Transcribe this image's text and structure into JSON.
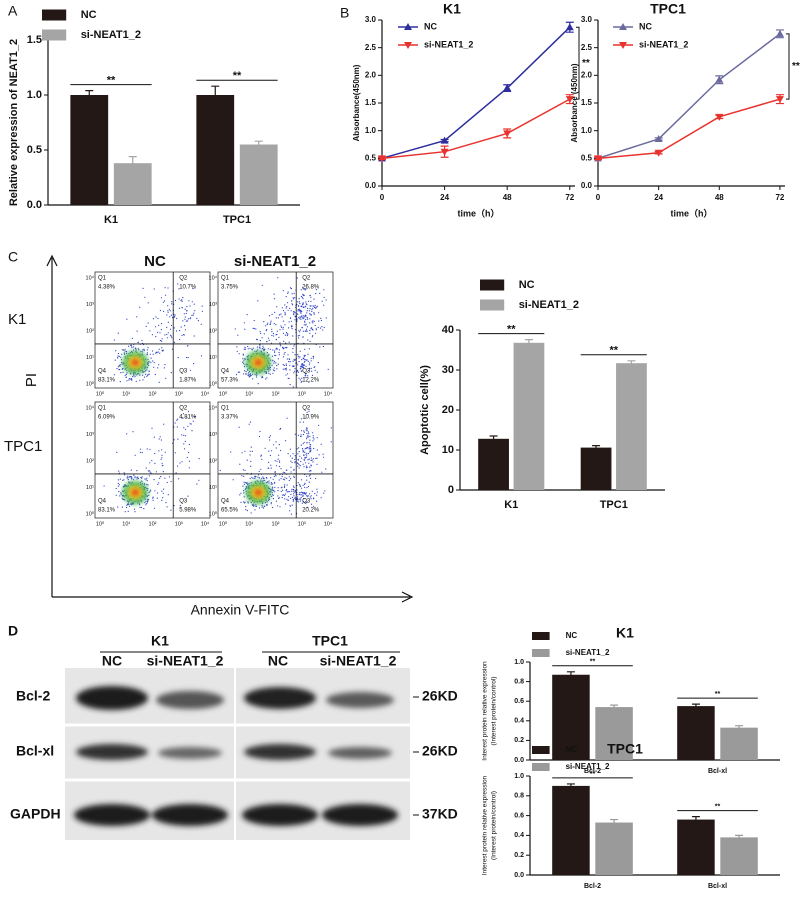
{
  "panels": [
    "A",
    "B",
    "C",
    "D"
  ],
  "chart_data": [
    {
      "type": "bar",
      "y_label": "Relative expression of NEAT1_2",
      "categories": [
        "K1",
        "TPC1"
      ],
      "series": [
        {
          "name": "NC",
          "color": "#231815",
          "values": [
            1.0,
            1.0
          ],
          "errors": [
            0.04,
            0.08
          ]
        },
        {
          "name": "si-NEAT1_2",
          "color": "#a5a5a5",
          "values": [
            0.38,
            0.55
          ],
          "errors": [
            0.06,
            0.03
          ]
        }
      ],
      "ylim": [
        0,
        1.5
      ],
      "yticks": [
        {
          "value": 0,
          "label": "0.0"
        },
        0.5,
        {
          "value": 1,
          "label": "1.0"
        },
        1.5
      ],
      "annotations": [
        "**",
        "**"
      ]
    },
    {
      "type": "line",
      "title": "K1",
      "y_label": "Absorbance(450nm)",
      "x_label": "time（h）",
      "x": [
        0,
        24,
        48,
        72
      ],
      "series": [
        {
          "name": "NC",
          "color": "#2e2e9e",
          "marker": "triangle-up",
          "values": [
            0.5,
            0.82,
            1.77,
            2.87
          ],
          "errors": [
            0.02,
            0.02,
            0.06,
            0.09
          ]
        },
        {
          "name": "si-NEAT1_2",
          "color": "#e8322d",
          "marker": "triangle-down",
          "values": [
            0.5,
            0.62,
            0.95,
            1.57
          ],
          "errors": [
            0.02,
            0.1,
            0.08,
            0.08
          ]
        }
      ],
      "xlim": [
        0,
        74
      ],
      "xticks": [
        0,
        24,
        48,
        72
      ],
      "ylim": [
        0,
        3
      ],
      "yticks": [
        {
          "value": 0,
          "label": "0.0"
        },
        0.5,
        {
          "value": 1,
          "label": "1.0"
        },
        1.5,
        {
          "value": 2,
          "label": "2.0"
        },
        2.5,
        {
          "value": 3,
          "label": "3.0"
        }
      ],
      "annotations": [
        "**"
      ]
    },
    {
      "type": "line",
      "title": "TPC1",
      "y_label": "Absorbance (450nm)",
      "x_label": "time（h）",
      "x": [
        0,
        24,
        48,
        72
      ],
      "series": [
        {
          "name": "NC",
          "color": "#6a6a9e",
          "marker": "triangle-up",
          "values": [
            0.5,
            0.85,
            1.92,
            2.75
          ],
          "errors": [
            0.02,
            0.02,
            0.07,
            0.07
          ]
        },
        {
          "name": "si-NEAT1_2",
          "color": "#e8322d",
          "marker": "triangle-down",
          "values": [
            0.5,
            0.6,
            1.25,
            1.57
          ],
          "errors": [
            0.02,
            0.02,
            0.03,
            0.08
          ]
        }
      ],
      "xlim": [
        0,
        74
      ],
      "xticks": [
        0,
        24,
        48,
        72
      ],
      "ylim": [
        0,
        3
      ],
      "yticks": [
        {
          "value": 0,
          "label": "0.0"
        },
        0.5,
        {
          "value": 1,
          "label": "1.0"
        },
        1.5,
        {
          "value": 2,
          "label": "2.0"
        },
        2.5,
        {
          "value": 3,
          "label": "3.0"
        }
      ],
      "annotations": [
        "**"
      ]
    },
    {
      "type": "bar",
      "y_label": "Apoptotic cell(%)",
      "categories": [
        "K1",
        "TPC1"
      ],
      "series": [
        {
          "name": "NC",
          "color": "#231815",
          "values": [
            12.8,
            10.6
          ],
          "errors": [
            0.7,
            0.5
          ]
        },
        {
          "name": "si-NEAT1_2",
          "color": "#a5a5a5",
          "values": [
            36.8,
            31.7
          ],
          "errors": [
            0.8,
            0.6
          ]
        }
      ],
      "ylim": [
        0,
        40
      ],
      "yticks": [
        0,
        10,
        20,
        30,
        40
      ],
      "annotations": [
        "**",
        "**"
      ]
    },
    {
      "type": "bar",
      "title": "K1",
      "y_label": [
        "Interest protein relative expression",
        "(Interest protein/control)"
      ],
      "categories": [
        "Bcl-2",
        "Bcl-xl"
      ],
      "series": [
        {
          "name": "NC",
          "color": "#231815",
          "values": [
            0.87,
            0.55
          ],
          "errors": [
            0.03,
            0.02
          ]
        },
        {
          "name": "si-NEAT1_2",
          "color": "#9a9a9a",
          "values": [
            0.54,
            0.33
          ],
          "errors": [
            0.02,
            0.02
          ]
        }
      ],
      "ylim": [
        0,
        1
      ],
      "yticks": [
        {
          "value": 0,
          "label": "0.0"
        },
        0.2,
        0.4,
        0.6,
        0.8,
        {
          "value": 1,
          "label": "1.0"
        }
      ],
      "annotations": [
        "**",
        "**"
      ]
    },
    {
      "type": "bar",
      "title": "TPC1",
      "y_label": [
        "Interest protein relative expression",
        "(Interest protein/control)"
      ],
      "categories": [
        "Bcl-2",
        "Bcl-xl"
      ],
      "series": [
        {
          "name": "NC",
          "color": "#231815",
          "values": [
            0.9,
            0.56
          ],
          "errors": [
            0.02,
            0.03
          ]
        },
        {
          "name": "si-NEAT1_2",
          "color": "#9a9a9a",
          "values": [
            0.53,
            0.38
          ],
          "errors": [
            0.03,
            0.02
          ]
        }
      ],
      "ylim": [
        0,
        1
      ],
      "yticks": [
        {
          "value": 0,
          "label": "0.0"
        },
        0.2,
        0.4,
        0.6,
        0.8,
        {
          "value": 1,
          "label": "1.0"
        }
      ],
      "annotations": [
        "**",
        "**"
      ]
    }
  ],
  "flow": {
    "columns": [
      "NC",
      "si-NEAT1_2"
    ],
    "rows": [
      "K1",
      "TPC1"
    ],
    "y_label": "PI",
    "x_label": "Annexin V-FITC",
    "decades": [
      "10⁰",
      "10¹",
      "10²",
      "10³",
      "10⁴"
    ],
    "plots": [
      {
        "quadrants": [
          [
            "Q1",
            "4.38%"
          ],
          [
            "Q2",
            "10.7%"
          ],
          [
            "Q3",
            "1.87%"
          ],
          [
            "Q4",
            "83.1%"
          ]
        ]
      },
      {
        "quadrants": [
          [
            "Q1",
            "3.75%"
          ],
          [
            "Q2",
            "26.8%"
          ],
          [
            "Q3",
            "12.2%"
          ],
          [
            "Q4",
            "57.3%"
          ]
        ]
      },
      {
        "quadrants": [
          [
            "Q1",
            "6.09%"
          ],
          [
            "Q2",
            "4.81%"
          ],
          [
            "Q3",
            "5.98%"
          ],
          [
            "Q4",
            "83.1%"
          ]
        ]
      },
      {
        "quadrants": [
          [
            "Q1",
            "3.37%"
          ],
          [
            "Q2",
            "10.9%"
          ],
          [
            "Q3",
            "20.2%"
          ],
          [
            "Q4",
            "65.5%"
          ]
        ]
      }
    ]
  },
  "blot": {
    "groups": [
      "K1",
      "TPC1"
    ],
    "lanes": [
      "NC",
      "si-NEAT1_2",
      "NC",
      "si-NEAT1_2"
    ],
    "proteins": [
      "Bcl-2",
      "Bcl-xl",
      "GAPDH"
    ],
    "sizes": [
      "26KD",
      "26KD",
      "37KD"
    ]
  }
}
